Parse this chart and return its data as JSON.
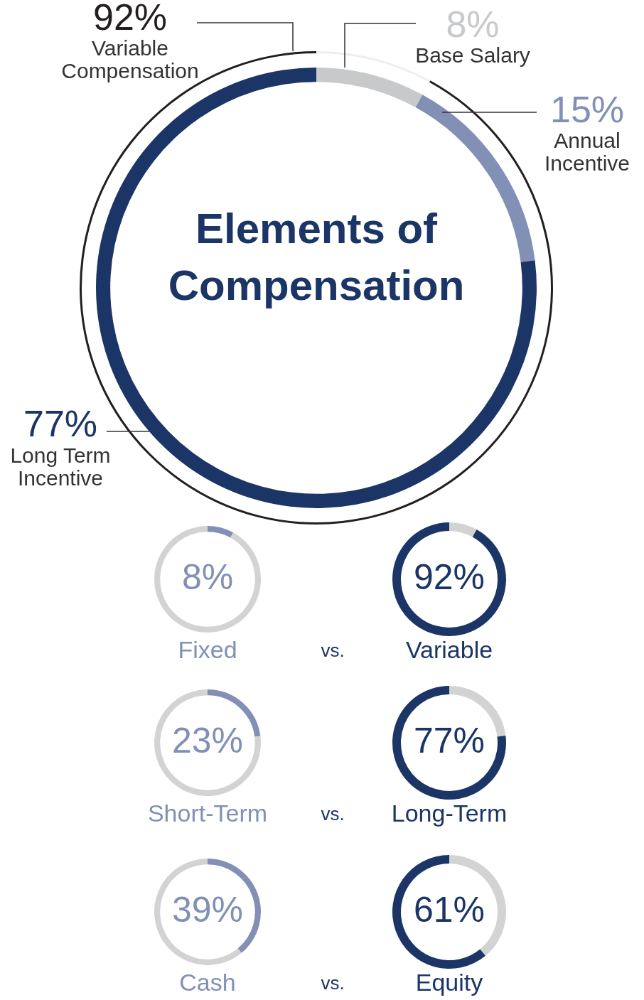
{
  "chart_data": [
    {
      "type": "donut",
      "title": "Elements of Compensation",
      "categories": [
        "Base Salary",
        "Annual Incentive",
        "Long Term Incentive"
      ],
      "values": [
        8,
        15,
        77
      ],
      "colors": [
        "#c8c9cb",
        "#8290b6",
        "#1b3566"
      ],
      "value_labels": [
        "8%",
        "15%",
        "77%"
      ]
    },
    {
      "type": "donut",
      "categories": [
        null,
        "Variable Compensation"
      ],
      "values": [
        8,
        92
      ],
      "colors": [
        "#eeeeee",
        "#231f20"
      ],
      "value_labels": [
        null,
        "92%"
      ]
    },
    {
      "type": "donut",
      "title": "Fixed",
      "categories": [
        null,
        null
      ],
      "values": [
        8,
        92
      ],
      "colors": [
        "#8290b6",
        "#d3d3d3"
      ],
      "value_labels": [
        "8%",
        null
      ],
      "annotations": [
        "vs."
      ]
    },
    {
      "type": "donut",
      "title": "Variable",
      "categories": [
        null,
        null
      ],
      "values": [
        8,
        92
      ],
      "colors": [
        "#d3d3d3",
        "#1b3566"
      ],
      "value_labels": [
        null,
        "92%"
      ]
    },
    {
      "type": "donut",
      "title": "Short-Term",
      "categories": [
        null,
        null
      ],
      "values": [
        23,
        77
      ],
      "colors": [
        "#8290b6",
        "#d3d3d3"
      ],
      "value_labels": [
        "23%",
        null
      ],
      "annotations": [
        "vs."
      ]
    },
    {
      "type": "donut",
      "title": "Long-Term",
      "categories": [
        null,
        null
      ],
      "values": [
        23,
        77
      ],
      "colors": [
        "#d3d3d3",
        "#1b3566"
      ],
      "value_labels": [
        null,
        "77%"
      ]
    },
    {
      "type": "donut",
      "title": "Cash",
      "categories": [
        null,
        null
      ],
      "values": [
        39,
        61
      ],
      "colors": [
        "#8290b6",
        "#d3d3d3"
      ],
      "value_labels": [
        "39%",
        null
      ],
      "annotations": [
        "vs."
      ]
    },
    {
      "type": "donut",
      "title": "Equity",
      "categories": [
        null,
        null
      ],
      "values": [
        39,
        61
      ],
      "colors": [
        "#d3d3d3",
        "#1b3566"
      ],
      "value_labels": [
        null,
        "61%"
      ]
    }
  ]
}
